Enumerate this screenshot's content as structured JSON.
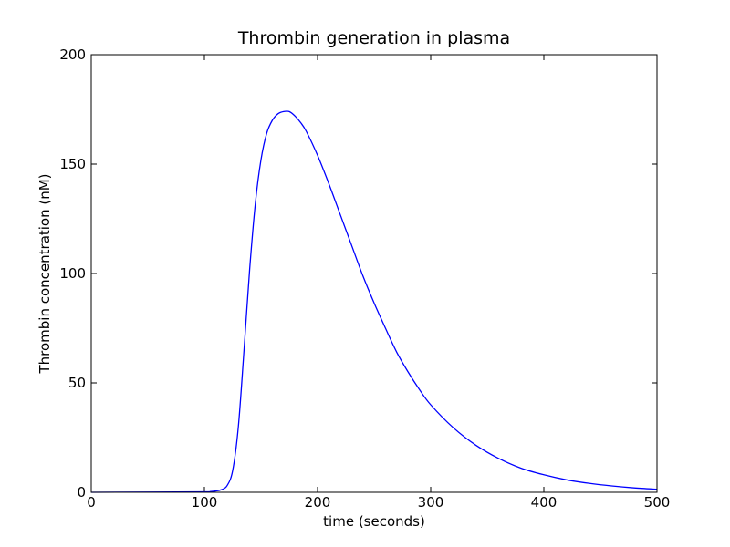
{
  "chart_data": {
    "type": "line",
    "title": "Thrombin generation in plasma",
    "xlabel": "time (seconds)",
    "ylabel": "Thrombin concentration (nM)",
    "xlim": [
      0,
      500
    ],
    "ylim": [
      0,
      200
    ],
    "grid": false,
    "x_ticks": [
      0,
      100,
      200,
      300,
      400,
      500
    ],
    "y_ticks": [
      0,
      50,
      100,
      150,
      200
    ],
    "series": [
      {
        "color": "#0000ff",
        "x": [
          0,
          100,
          105,
          110,
          115,
          120,
          125,
          130,
          135,
          140,
          145,
          150,
          155,
          160,
          165,
          170,
          175,
          180,
          185,
          190,
          200,
          210,
          220,
          230,
          240,
          250,
          260,
          270,
          280,
          290,
          300,
          320,
          340,
          360,
          380,
          400,
          420,
          440,
          460,
          480,
          500
        ],
        "y": [
          0,
          0.2,
          0.3,
          0.6,
          1.2,
          3,
          10,
          30,
          65,
          102,
          132,
          152,
          164,
          170,
          173,
          174,
          174,
          172,
          169,
          165,
          154,
          141,
          127,
          113,
          99,
          86.5,
          75,
          64,
          55,
          47,
          40,
          29.5,
          21.5,
          15.5,
          11,
          8,
          5.7,
          4.1,
          2.9,
          2.0,
          1.4
        ]
      }
    ]
  }
}
